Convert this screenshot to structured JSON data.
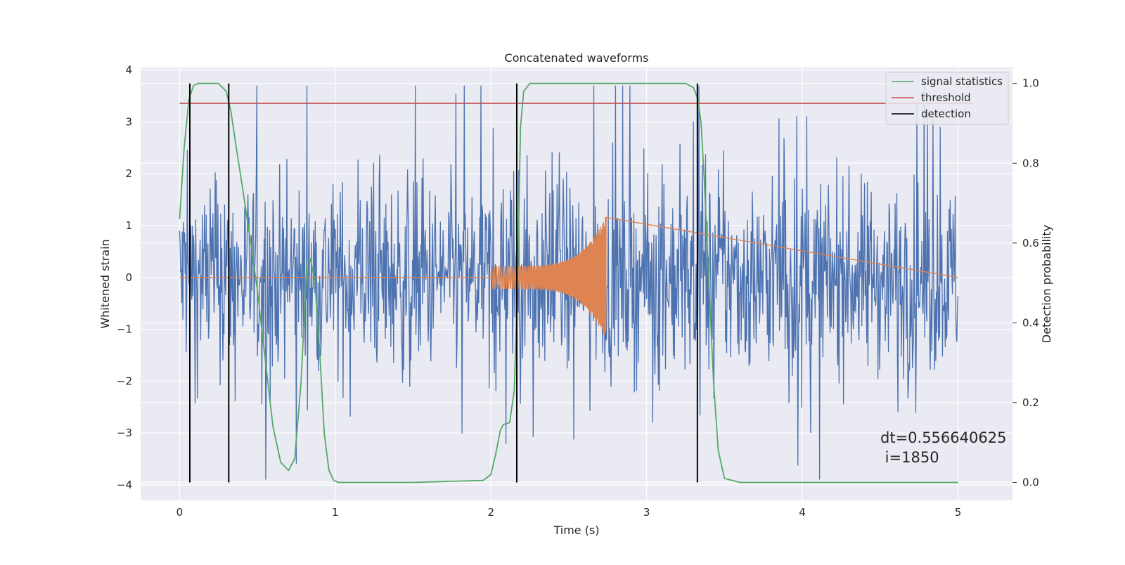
{
  "chart_data": {
    "type": "line",
    "title": "Concatenated waveforms",
    "xlabel": "Time (s)",
    "ylabel": "Whitened strain",
    "y2label": "Detection probability",
    "xlim": [
      -0.25,
      5.35
    ],
    "ylim": [
      -4.3,
      4.05
    ],
    "y2lim": [
      -0.045,
      1.04
    ],
    "xticks": [
      0,
      1,
      2,
      3,
      4,
      5
    ],
    "yticks": [
      -4,
      -3,
      -2,
      -1,
      0,
      1,
      2,
      3,
      4
    ],
    "y2ticks": [
      0.0,
      0.2,
      0.4,
      0.6,
      0.8,
      1.0
    ],
    "grid": true,
    "legend_position": "top-right",
    "colors": {
      "background": "#eaeaf2",
      "strain": "#4c72b0",
      "template": "#dd8452",
      "signal_statistics": "#55a868",
      "threshold": "#c44e52",
      "detection": "#000000"
    },
    "series": [
      {
        "name": "signal statistics",
        "axis": "right",
        "x": [
          0.0,
          0.03,
          0.06,
          0.09,
          0.12,
          0.15,
          0.25,
          0.3,
          0.33,
          0.36,
          0.4,
          0.45,
          0.5,
          0.55,
          0.6,
          0.65,
          0.7,
          0.74,
          0.78,
          0.82,
          0.84,
          0.87,
          0.9,
          0.93,
          0.96,
          0.99,
          1.02,
          1.1,
          1.5,
          1.95,
          2.0,
          2.03,
          2.06,
          2.08,
          2.12,
          2.15,
          2.17,
          2.19,
          2.21,
          2.25,
          2.4,
          3.25,
          3.3,
          3.33,
          3.35,
          3.37,
          3.4,
          3.43,
          3.46,
          3.5,
          3.6,
          5.0
        ],
        "values": [
          0.66,
          0.84,
          0.96,
          0.995,
          1.0,
          1.0,
          1.0,
          0.98,
          0.93,
          0.85,
          0.75,
          0.62,
          0.48,
          0.31,
          0.14,
          0.05,
          0.03,
          0.06,
          0.25,
          0.56,
          0.56,
          0.5,
          0.33,
          0.12,
          0.03,
          0.005,
          0.0,
          0.0,
          0.0,
          0.005,
          0.02,
          0.07,
          0.13,
          0.145,
          0.15,
          0.23,
          0.5,
          0.89,
          0.98,
          1.0,
          1.0,
          1.0,
          0.99,
          0.96,
          0.9,
          0.76,
          0.5,
          0.25,
          0.08,
          0.01,
          0.0,
          0.0
        ]
      },
      {
        "name": "threshold",
        "axis": "right",
        "x": [
          0,
          5.1
        ],
        "values": [
          0.95,
          0.95
        ]
      },
      {
        "name": "detection",
        "axis": "right",
        "x_positions": [
          0.066,
          0.316,
          2.166,
          3.326
        ],
        "range": [
          0.0,
          1.0
        ]
      }
    ],
    "strain": {
      "x_range": [
        0,
        5
      ],
      "core_amplitude": 0.9,
      "max": 3.7,
      "min": -3.9
    },
    "template": {
      "x_range": [
        2.0,
        2.74
      ],
      "amplitude_start": 0.22,
      "amplitude_peak": 1.2
    },
    "annotation": {
      "dt": "dt=0.556640625",
      "i": " i=1850"
    },
    "legend": [
      {
        "label": "signal statistics",
        "color": "#55a868"
      },
      {
        "label": "threshold",
        "color": "#c44e52"
      },
      {
        "label": "detection",
        "color": "#000000"
      }
    ]
  }
}
